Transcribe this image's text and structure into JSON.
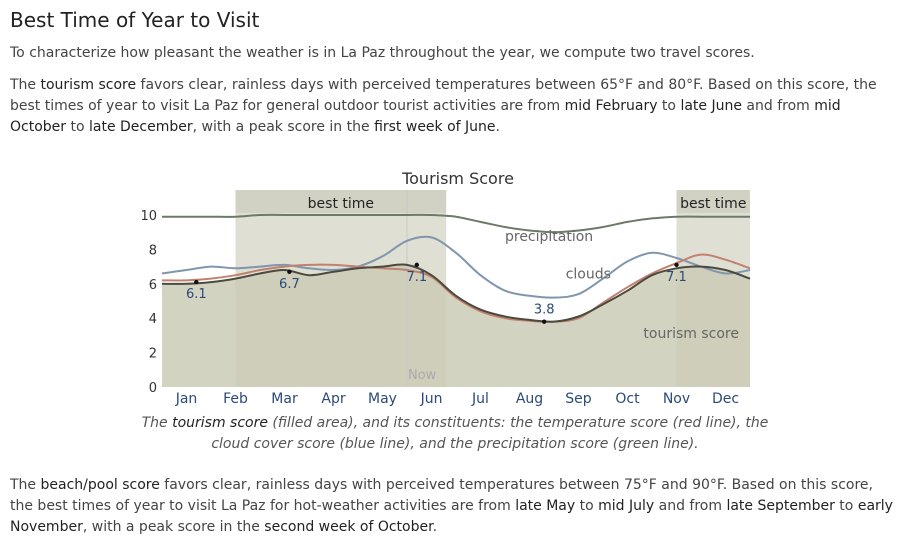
{
  "heading": "Best Time of Year to Visit",
  "intro": "To characterize how pleasant the weather is in La Paz throughout the year, we compute two travel scores.",
  "tourism_para": {
    "s1": "The ",
    "kw": "tourism score",
    "s2": " favors clear, rainless days with perceived temperatures between 65°F and 80°F. Based on this score, the best times of year to visit La Paz for general outdoor tourist activities are from ",
    "r1a": "mid February",
    "s3": " to ",
    "r1b": "late June",
    "s4": " and from ",
    "r2a": "mid October",
    "s5": " to ",
    "r2b": "late December",
    "s6": ", with a peak score in the ",
    "peak": "first week of June",
    "s7": "."
  },
  "caption": {
    "s1": "The ",
    "kw": "tourism score",
    "s2": " (filled area), and its constituents: the temperature score (red line), the cloud cover score (blue line), and the precipitation score (green line)."
  },
  "beach_para": {
    "s1": "The ",
    "kw": "beach/pool score",
    "s2": " favors clear, rainless days with perceived temperatures between 75°F and 90°F. Based on this score, the best times of year to visit La Paz for hot-weather activities are from ",
    "r1a": "late May",
    "s3": " to ",
    "r1b": "mid July",
    "s4": " and from ",
    "r2a": "late September",
    "s5": " to ",
    "r2b": "early November",
    "s6": ", with a peak score in the ",
    "peak": "second week of October",
    "s7": "."
  },
  "colors": {
    "tourism_fill": "#cbcbb6",
    "tourism_line": "#4a4a3e",
    "temperature": "#c0826e",
    "clouds": "#8096ad",
    "precipitation": "#6e7a68",
    "best_band": "#dfdfd4",
    "now_line": "#c8c8c8",
    "month_label": "#2b4a7a",
    "value_label": "#2b4a7a"
  },
  "chart_data": {
    "type": "area",
    "title": "Tourism Score",
    "x_unit_label": "month",
    "months": [
      "Jan",
      "Feb",
      "Mar",
      "Apr",
      "May",
      "Jun",
      "Jul",
      "Aug",
      "Sep",
      "Oct",
      "Nov",
      "Dec"
    ],
    "y_ticks": [
      "0",
      "2",
      "4",
      "6",
      "8",
      "10"
    ],
    "ylim": [
      0,
      10
    ],
    "x_range": [
      0,
      12
    ],
    "now_label": "Now",
    "now_x": 5.0,
    "best_time_label": "best time",
    "best_time_ranges": [
      [
        1.5,
        5.8
      ],
      [
        10.5,
        12
      ]
    ],
    "series": [
      {
        "name": "tourism score",
        "key": "tourism",
        "x": [
          0,
          0.5,
          1,
          1.5,
          2,
          2.5,
          3,
          3.5,
          4,
          4.5,
          5,
          5.5,
          6,
          6.5,
          7,
          7.5,
          8,
          8.5,
          9,
          9.5,
          10,
          10.5,
          11,
          11.5,
          12
        ],
        "y": [
          6.0,
          6.0,
          6.1,
          6.3,
          6.6,
          6.8,
          6.5,
          6.7,
          6.9,
          7.0,
          7.1,
          6.5,
          5.3,
          4.5,
          4.1,
          3.9,
          3.8,
          4.1,
          4.8,
          5.6,
          6.5,
          6.9,
          7.0,
          6.8,
          6.3
        ]
      },
      {
        "name": "temperature",
        "key": "temperature",
        "x": [
          0,
          0.5,
          1,
          1.5,
          2,
          2.5,
          3,
          3.5,
          4,
          4.5,
          5,
          5.5,
          6,
          6.5,
          7,
          7.5,
          8,
          8.5,
          9,
          9.5,
          10,
          10.5,
          11,
          11.5,
          12
        ],
        "y": [
          6.2,
          6.2,
          6.3,
          6.5,
          6.8,
          7.0,
          7.1,
          7.1,
          7.0,
          6.9,
          6.8,
          6.4,
          5.2,
          4.4,
          4.0,
          3.85,
          3.8,
          4.0,
          4.9,
          5.8,
          6.6,
          7.2,
          7.7,
          7.4,
          6.9
        ]
      },
      {
        "name": "clouds",
        "key": "clouds",
        "x": [
          0,
          0.5,
          1,
          1.5,
          2,
          2.5,
          3,
          3.5,
          4,
          4.5,
          5,
          5.5,
          6,
          6.5,
          7,
          7.5,
          8,
          8.5,
          9,
          9.5,
          10,
          10.5,
          11,
          11.5,
          12
        ],
        "y": [
          6.6,
          6.8,
          7.0,
          6.9,
          7.0,
          7.1,
          6.9,
          6.8,
          7.0,
          7.6,
          8.5,
          8.7,
          7.8,
          6.5,
          5.6,
          5.3,
          5.2,
          5.4,
          6.3,
          7.3,
          7.8,
          7.5,
          7.0,
          6.6,
          6.8
        ]
      },
      {
        "name": "precipitation",
        "key": "precipitation",
        "x": [
          0,
          0.5,
          1,
          1.5,
          2,
          2.5,
          3,
          3.5,
          4,
          4.5,
          5,
          5.5,
          6,
          6.5,
          7,
          7.5,
          8,
          8.5,
          9,
          9.5,
          10,
          10.5,
          11,
          11.5,
          12
        ],
        "y": [
          9.9,
          9.9,
          9.9,
          9.9,
          10.0,
          10.0,
          10.0,
          10.0,
          10.0,
          10.0,
          10.0,
          10.0,
          9.9,
          9.6,
          9.3,
          9.1,
          9.0,
          9.1,
          9.3,
          9.6,
          9.8,
          9.9,
          9.9,
          9.9,
          9.9
        ]
      }
    ],
    "value_labels": [
      {
        "x": 0.7,
        "y": 6.1,
        "text": "6.1"
      },
      {
        "x": 2.6,
        "y": 6.7,
        "text": "6.7"
      },
      {
        "x": 5.2,
        "y": 7.1,
        "text": "7.1"
      },
      {
        "x": 7.8,
        "y": 3.8,
        "text": "3.8"
      },
      {
        "x": 10.5,
        "y": 7.1,
        "text": "7.1"
      }
    ],
    "series_annotations": [
      {
        "text": "precipitation",
        "x": 7.9,
        "y": 8.5
      },
      {
        "text": "clouds",
        "x": 8.7,
        "y": 6.3
      },
      {
        "text": "tourism score",
        "x": 10.8,
        "y": 2.85
      }
    ]
  }
}
